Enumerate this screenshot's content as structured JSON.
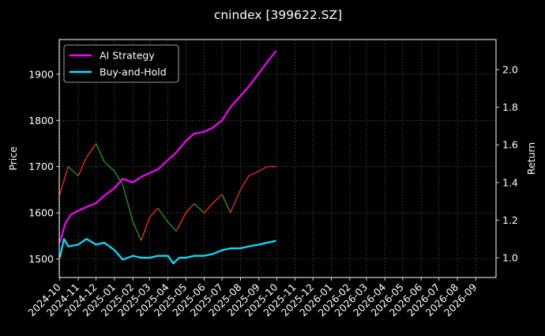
{
  "chart_data": {
    "type": "line",
    "title": "cnindex [399622.SZ]",
    "ylabel_left": "Price",
    "ylabel_right": "Return",
    "grid": true,
    "legend_position": "top-left",
    "x_tick_labels": [
      "2024-10",
      "2024-11",
      "2024-12",
      "2025-01",
      "2025-02",
      "2025-03",
      "2025-04",
      "2025-05",
      "2025-06",
      "2025-07",
      "2025-08",
      "2025-09",
      "2025-10",
      "2025-11",
      "2025-12",
      "2026-01",
      "2026-02",
      "2026-03",
      "2026-04",
      "2026-05",
      "2026-06",
      "2026-07",
      "2026-08",
      "2026-09"
    ],
    "xlim": [
      "2024-09-30",
      "2026-10-05"
    ],
    "y_left": {
      "ticks": [
        1500,
        1600,
        1700,
        1800,
        1900
      ],
      "lim": [
        1460,
        1975
      ]
    },
    "y_right": {
      "ticks": [
        "1.0",
        "1.2",
        "1.4",
        "1.6",
        "1.8",
        "2.0"
      ],
      "lim": [
        0.895,
        2.16
      ]
    },
    "candles": {
      "colors": {
        "up": "#ff2a1a",
        "down": "#1f9e1f"
      },
      "dates": [
        "2024-10-01",
        "2024-10-15",
        "2024-11-01",
        "2024-11-15",
        "2024-12-01",
        "2024-12-15",
        "2025-01-01",
        "2025-01-15",
        "2025-02-01",
        "2025-02-15",
        "2025-03-01",
        "2025-03-15",
        "2025-04-01",
        "2025-04-15",
        "2025-05-01",
        "2025-05-15",
        "2025-06-01",
        "2025-06-15",
        "2025-07-01",
        "2025-07-15",
        "2025-08-01",
        "2025-08-15",
        "2025-09-01",
        "2025-09-15",
        "2025-09-30"
      ],
      "close": [
        1640,
        1700,
        1680,
        1720,
        1750,
        1710,
        1690,
        1660,
        1580,
        1540,
        1590,
        1610,
        1580,
        1560,
        1600,
        1620,
        1600,
        1620,
        1640,
        1600,
        1650,
        1680,
        1690,
        1700,
        1700
      ]
    },
    "series": [
      {
        "name": "AI Strategy",
        "color": "#ff00ff",
        "axis": "right",
        "x": [
          "2024-10-01",
          "2024-10-10",
          "2024-10-20",
          "2024-11-01",
          "2024-11-15",
          "2024-12-01",
          "2024-12-15",
          "2025-01-01",
          "2025-01-15",
          "2025-02-01",
          "2025-02-15",
          "2025-03-01",
          "2025-03-15",
          "2025-04-01",
          "2025-04-15",
          "2025-05-01",
          "2025-05-15",
          "2025-06-01",
          "2025-06-15",
          "2025-07-01",
          "2025-07-15",
          "2025-08-01",
          "2025-08-15",
          "2025-09-01",
          "2025-09-15",
          "2025-09-30"
        ],
        "values": [
          1.08,
          1.18,
          1.23,
          1.25,
          1.27,
          1.29,
          1.33,
          1.37,
          1.42,
          1.4,
          1.43,
          1.45,
          1.47,
          1.52,
          1.56,
          1.62,
          1.66,
          1.67,
          1.69,
          1.73,
          1.8,
          1.86,
          1.91,
          1.98,
          2.04,
          2.1
        ]
      },
      {
        "name": "Buy-and-Hold",
        "color": "#00e5ff",
        "axis": "right",
        "x": [
          "2024-10-01",
          "2024-10-08",
          "2024-10-15",
          "2024-11-01",
          "2024-11-15",
          "2024-12-01",
          "2024-12-15",
          "2025-01-01",
          "2025-01-15",
          "2025-02-01",
          "2025-02-15",
          "2025-03-01",
          "2025-03-15",
          "2025-04-01",
          "2025-04-10",
          "2025-04-20",
          "2025-05-01",
          "2025-05-15",
          "2025-06-01",
          "2025-06-15",
          "2025-07-01",
          "2025-07-15",
          "2025-08-01",
          "2025-08-15",
          "2025-09-01",
          "2025-09-15",
          "2025-09-30"
        ],
        "values": [
          1.0,
          1.1,
          1.06,
          1.07,
          1.1,
          1.07,
          1.08,
          1.04,
          0.99,
          1.01,
          1.0,
          1.0,
          1.01,
          1.01,
          0.97,
          1.0,
          1.0,
          1.01,
          1.01,
          1.02,
          1.04,
          1.05,
          1.05,
          1.06,
          1.07,
          1.08,
          1.09
        ]
      }
    ]
  }
}
